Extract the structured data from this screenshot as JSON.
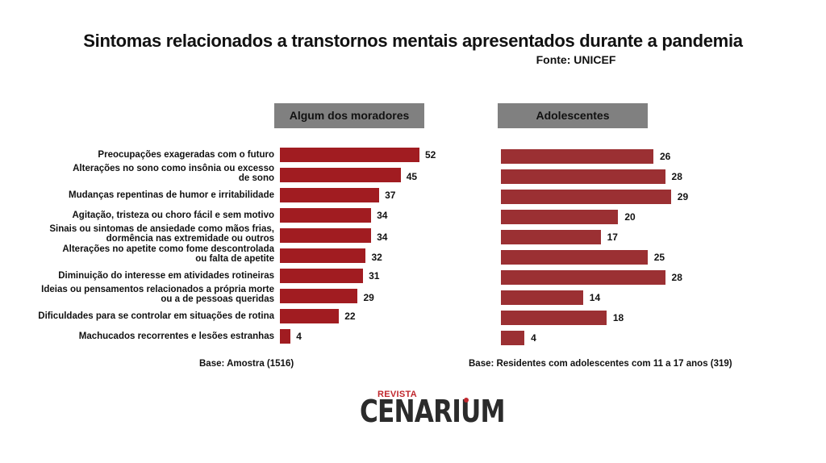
{
  "header": {
    "title": "Sintomas relacionados a transtornos mentais apresentados durante a pandemia",
    "source": "Fonte: UNICEF"
  },
  "colors": {
    "left_bar": "#a11c21",
    "right_bar": "#9b3033",
    "panel_header": "#808080"
  },
  "chart_data": [
    {
      "type": "bar",
      "orientation": "horizontal",
      "title": "Algum dos moradores",
      "categories": [
        "Preocupações exageradas com o futuro",
        "Alterações no sono como insônia ou excesso de sono",
        "Mudanças repentinas de humor e irritabilidade",
        "Agitação, tristeza ou choro fácil e sem motivo",
        "Sinais ou sintomas de ansiedade como mãos frias, dormência nas extremidade ou outros",
        "Alterações no apetite como fome descontrolada ou falta de apetite",
        "Diminuição do interesse em atividades rotineiras",
        "Ideias ou pensamentos relacionados a própria morte ou a de pessoas queridas",
        "Dificuldades para se controlar em situações de rotina",
        "Machucados recorrentes e lesões estranhas"
      ],
      "values": [
        52,
        45,
        37,
        34,
        34,
        32,
        31,
        29,
        22,
        4
      ],
      "footnote": "Base: Amostra (1516)",
      "grid": false
    },
    {
      "type": "bar",
      "orientation": "horizontal",
      "title": "Adolescentes",
      "categories": [
        "Preocupações exageradas com o futuro",
        "Alterações no sono como insônia ou excesso de sono",
        "Mudanças repentinas de humor e irritabilidade",
        "Agitação, tristeza ou choro fácil e sem motivo",
        "Sinais ou sintomas de ansiedade como mãos frias, dormência nas extremidade ou outros",
        "Alterações no apetite como fome descontrolada ou falta de apetite",
        "Diminuição do interesse em atividades rotineiras",
        "Ideias ou pensamentos relacionados a própria morte ou a de pessoas queridas",
        "Dificuldades para se controlar em situações de rotina",
        "Machucados recorrentes e lesões estranhas"
      ],
      "values": [
        26,
        28,
        29,
        20,
        17,
        25,
        28,
        14,
        18,
        4
      ],
      "footnote": "Base: Residentes com adolescentes com 11 a 17 anos (319)",
      "grid": false
    }
  ],
  "labels": [
    [
      "Preocupações exageradas com o futuro"
    ],
    [
      "Alterações no sono como insônia ou excesso",
      "de sono"
    ],
    [
      "Mudanças repentinas de humor e irritabilidade"
    ],
    [
      "Agitação, tristeza ou choro fácil e sem motivo"
    ],
    [
      "Sinais ou sintomas de ansiedade como mãos frias,",
      "dormência nas extremidade ou outros"
    ],
    [
      "Alterações no apetite como fome descontrolada",
      "ou falta de apetite"
    ],
    [
      "Diminuição do interesse em atividades rotineiras"
    ],
    [
      "Ideias ou pensamentos relacionados a própria morte",
      "ou a de pessoas queridas"
    ],
    [
      "Dificuldades para se controlar em situações de rotina"
    ],
    [
      "Machucados recorrentes e lesões estranhas"
    ]
  ],
  "logo": {
    "small": "REVISTA",
    "big": "CENARIUM"
  }
}
